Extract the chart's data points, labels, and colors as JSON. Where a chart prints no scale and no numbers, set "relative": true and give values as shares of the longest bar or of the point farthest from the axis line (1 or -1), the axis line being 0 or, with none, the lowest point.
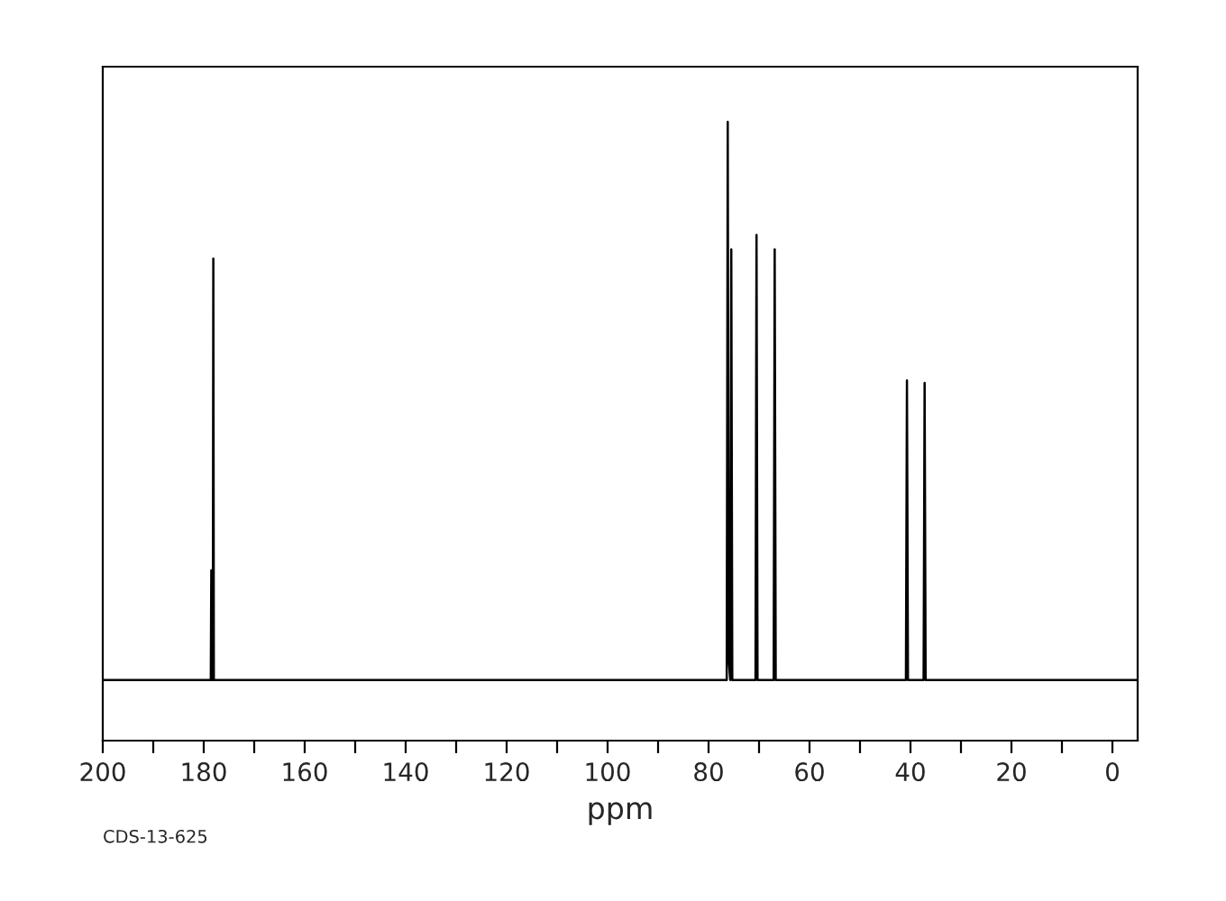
{
  "chart_data": {
    "type": "line",
    "relative": true,
    "xlabel": "ppm",
    "color": "#000000",
    "annotations": [
      "CDS-13-625"
    ],
    "xlim": [
      200,
      -5
    ],
    "xticks": [
      200,
      {
        "value": 190,
        "label": null
      },
      180,
      {
        "value": 170,
        "label": null
      },
      160,
      {
        "value": 150,
        "label": null
      },
      140,
      {
        "value": 130,
        "label": null
      },
      120,
      {
        "value": 110,
        "label": null
      },
      100,
      {
        "value": 90,
        "label": null
      },
      80,
      {
        "value": 70,
        "label": null
      },
      60,
      {
        "value": 50,
        "label": null
      },
      40,
      {
        "value": 30,
        "label": null
      },
      20,
      {
        "value": 10,
        "label": null
      },
      0
    ],
    "x": [
      200,
      179,
      178.6,
      178.5,
      178.4,
      178.2,
      178.1,
      178.0,
      177,
      77,
      76.4,
      76.2,
      76.0,
      75.7,
      75.5,
      75.3,
      70.7,
      70.5,
      70.3,
      67.1,
      66.9,
      66.7,
      40.9,
      40.7,
      40.5,
      37.4,
      37.2,
      37.0,
      -5
    ],
    "values": [
      0.098,
      0.098,
      0.098,
      0.275,
      0.098,
      0.098,
      0.779,
      0.098,
      0.098,
      0.098,
      0.098,
      1.0,
      0.13,
      0.098,
      0.794,
      0.098,
      0.098,
      0.817,
      0.098,
      0.098,
      0.794,
      0.098,
      0.098,
      0.582,
      0.098,
      0.098,
      0.578,
      0.098,
      0.098
    ]
  }
}
